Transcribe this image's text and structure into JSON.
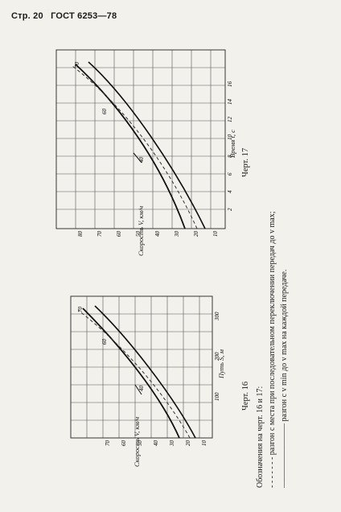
{
  "header": {
    "page": "Стр. 20",
    "standard": "ГОСТ 6253—78"
  },
  "figure16": {
    "caption": "Черт. 16",
    "x_axis_label": "Путь S, м",
    "y_axis_label": "Скорость V, км/ч",
    "y_ticks": [
      "10",
      "20",
      "30",
      "40",
      "50",
      "60",
      "70"
    ],
    "x_ticks": [
      "100",
      "200",
      "300"
    ],
    "curve_labels": [
      "70",
      "60",
      "40"
    ]
  },
  "figure17": {
    "caption": "Черт. 17",
    "x_axis_label": "Время t, с",
    "y_axis_label": "Скорость V, км/ч",
    "y_ticks": [
      "10",
      "20",
      "30",
      "40",
      "50",
      "60",
      "70",
      "80"
    ],
    "x_ticks": [
      "2",
      "4",
      "6",
      "8",
      "10",
      "12",
      "14",
      "16"
    ],
    "curve_labels": [
      "70",
      "60",
      "40"
    ]
  },
  "legend": {
    "title": "Обозначения на черт. 16 и 17:",
    "items": [
      "- - - - - - - разгон с места при последовательном переключении передач до v max;",
      "———————— разгон с v min до v max на каждой передаче."
    ]
  }
}
